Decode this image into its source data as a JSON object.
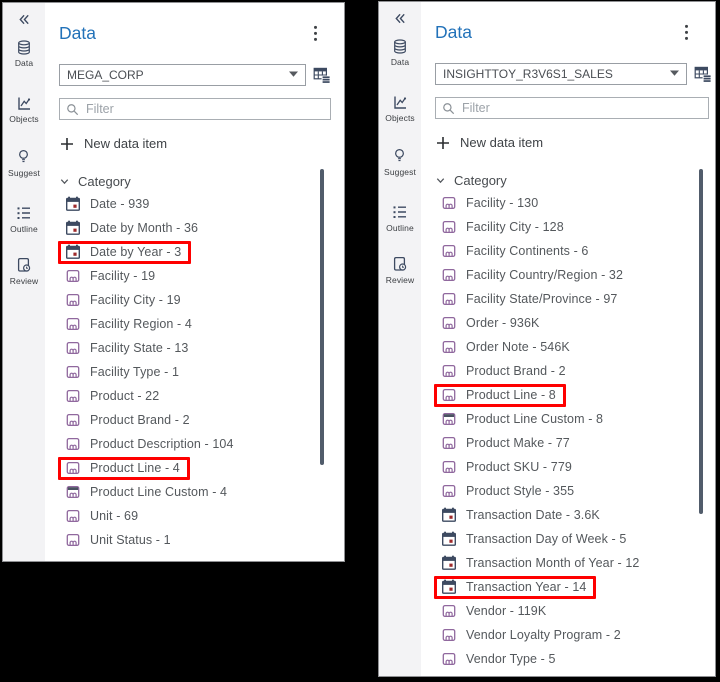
{
  "colors": {
    "background": "#000000",
    "title_blue": "#2272b9",
    "highlight_red": "#fe0000",
    "icon_navy": "#3d4a61",
    "category_purple": "#90689e",
    "calendar_accent_red": "#9e2a2b",
    "rail_background": "#f3f3f5"
  },
  "panels": [
    {
      "title": "Data",
      "data_source": "MEGA_CORP",
      "filter_placeholder": "Filter",
      "new_data_item_label": "New data item",
      "section": {
        "label": "Category",
        "expanded": true
      },
      "rail_items": [
        {
          "icon": "data-table-icon",
          "label": "Data"
        },
        {
          "icon": "objects-chart-icon",
          "label": "Objects"
        },
        {
          "icon": "suggest-bulb-icon",
          "label": "Suggest"
        },
        {
          "icon": "outline-list-icon",
          "label": "Outline"
        },
        {
          "icon": "review-icon",
          "label": "Review"
        }
      ],
      "items": [
        {
          "icon": "calendar",
          "label": "Date",
          "count": "939",
          "highlighted": false
        },
        {
          "icon": "calendar",
          "label": "Date by Month",
          "count": "36",
          "highlighted": false
        },
        {
          "icon": "calendar",
          "label": "Date by Year",
          "count": "3",
          "highlighted": true
        },
        {
          "icon": "category",
          "label": "Facility",
          "count": "19",
          "highlighted": false
        },
        {
          "icon": "category",
          "label": "Facility City",
          "count": "19",
          "highlighted": false
        },
        {
          "icon": "category",
          "label": "Facility Region",
          "count": "4",
          "highlighted": false
        },
        {
          "icon": "category",
          "label": "Facility State",
          "count": "13",
          "highlighted": false
        },
        {
          "icon": "category",
          "label": "Facility Type",
          "count": "1",
          "highlighted": false
        },
        {
          "icon": "category",
          "label": "Product",
          "count": "22",
          "highlighted": false
        },
        {
          "icon": "category",
          "label": "Product Brand",
          "count": "2",
          "highlighted": false
        },
        {
          "icon": "category",
          "label": "Product Description",
          "count": "104",
          "highlighted": false
        },
        {
          "icon": "category",
          "label": "Product Line",
          "count": "4",
          "highlighted": true
        },
        {
          "icon": "category-custom",
          "label": "Product Line Custom",
          "count": "4",
          "highlighted": false
        },
        {
          "icon": "category",
          "label": "Unit",
          "count": "69",
          "highlighted": false
        },
        {
          "icon": "category",
          "label": "Unit Status",
          "count": "1",
          "highlighted": false
        }
      ]
    },
    {
      "title": "Data",
      "data_source": "INSIGHTTOY_R3V6S1_SALES",
      "filter_placeholder": "Filter",
      "new_data_item_label": "New data item",
      "section": {
        "label": "Category",
        "expanded": true
      },
      "rail_items": [
        {
          "icon": "data-table-icon",
          "label": "Data"
        },
        {
          "icon": "objects-chart-icon",
          "label": "Objects"
        },
        {
          "icon": "suggest-bulb-icon",
          "label": "Suggest"
        },
        {
          "icon": "outline-list-icon",
          "label": "Outline"
        },
        {
          "icon": "review-icon",
          "label": "Review"
        }
      ],
      "items": [
        {
          "icon": "category",
          "label": "Facility",
          "count": "130",
          "highlighted": false
        },
        {
          "icon": "category",
          "label": "Facility City",
          "count": "128",
          "highlighted": false
        },
        {
          "icon": "category",
          "label": "Facility Continents",
          "count": "6",
          "highlighted": false
        },
        {
          "icon": "category",
          "label": "Facility Country/Region",
          "count": "32",
          "highlighted": false
        },
        {
          "icon": "category",
          "label": "Facility State/Province",
          "count": "97",
          "highlighted": false
        },
        {
          "icon": "category",
          "label": "Order",
          "count": "936K",
          "highlighted": false
        },
        {
          "icon": "category",
          "label": "Order Note",
          "count": "546K",
          "highlighted": false
        },
        {
          "icon": "category",
          "label": "Product Brand",
          "count": "2",
          "highlighted": false
        },
        {
          "icon": "category",
          "label": "Product Line",
          "count": "8",
          "highlighted": true
        },
        {
          "icon": "category-custom",
          "label": "Product Line Custom",
          "count": "8",
          "highlighted": false
        },
        {
          "icon": "category",
          "label": "Product Make",
          "count": "77",
          "highlighted": false
        },
        {
          "icon": "category",
          "label": "Product SKU",
          "count": "779",
          "highlighted": false
        },
        {
          "icon": "category",
          "label": "Product Style",
          "count": "355",
          "highlighted": false
        },
        {
          "icon": "calendar",
          "label": "Transaction Date",
          "count": "3.6K",
          "highlighted": false
        },
        {
          "icon": "calendar",
          "label": "Transaction Day of Week",
          "count": "5",
          "highlighted": false
        },
        {
          "icon": "calendar",
          "label": "Transaction Month of Year",
          "count": "12",
          "highlighted": false
        },
        {
          "icon": "calendar",
          "label": "Transaction Year",
          "count": "14",
          "highlighted": true
        },
        {
          "icon": "category",
          "label": "Vendor",
          "count": "119K",
          "highlighted": false
        },
        {
          "icon": "category",
          "label": "Vendor Loyalty Program",
          "count": "2",
          "highlighted": false
        },
        {
          "icon": "category",
          "label": "Vendor Type",
          "count": "5",
          "highlighted": false
        }
      ]
    }
  ]
}
